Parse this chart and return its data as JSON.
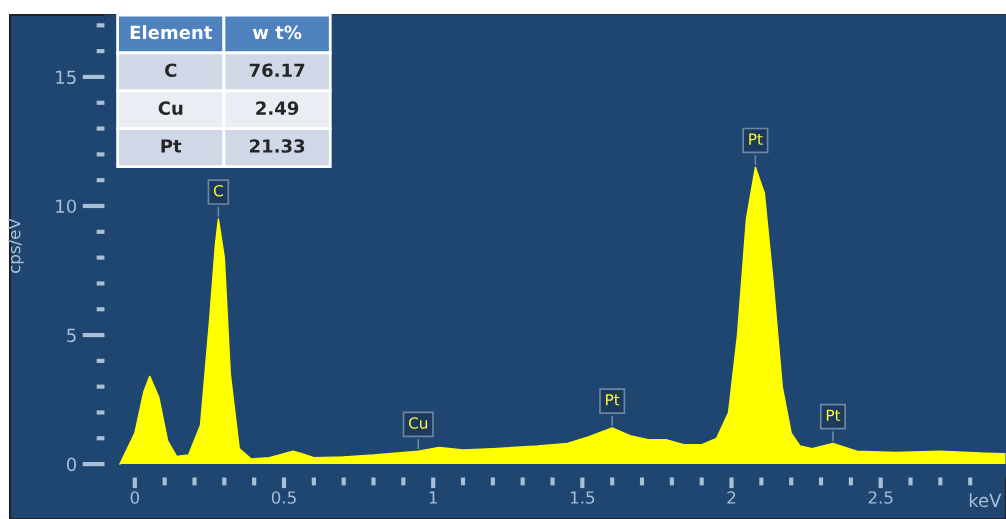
{
  "chart_data": {
    "type": "area",
    "xlabel": "keV",
    "ylabel": "cps/eV",
    "x": [
      -0.05,
      0.0,
      0.03,
      0.05,
      0.08,
      0.11,
      0.14,
      0.18,
      0.22,
      0.25,
      0.27,
      0.28,
      0.3,
      0.32,
      0.35,
      0.39,
      0.45,
      0.5,
      0.53,
      0.56,
      0.6,
      0.7,
      0.8,
      0.9,
      0.95,
      1.02,
      1.1,
      1.2,
      1.35,
      1.45,
      1.52,
      1.6,
      1.66,
      1.72,
      1.78,
      1.84,
      1.9,
      1.95,
      1.99,
      2.02,
      2.05,
      2.08,
      2.11,
      2.14,
      2.17,
      2.2,
      2.23,
      2.27,
      2.34,
      2.42,
      2.55,
      2.7,
      2.85,
      2.92
    ],
    "series": [
      {
        "color": "#ffff00",
        "values": [
          0.0,
          1.2,
          2.8,
          3.4,
          2.6,
          0.9,
          0.3,
          0.35,
          1.5,
          5.5,
          8.5,
          9.5,
          8.0,
          3.5,
          0.6,
          0.2,
          0.25,
          0.4,
          0.5,
          0.4,
          0.25,
          0.28,
          0.35,
          0.45,
          0.5,
          0.65,
          0.55,
          0.6,
          0.7,
          0.8,
          1.05,
          1.4,
          1.1,
          0.95,
          0.95,
          0.75,
          0.75,
          1.0,
          2.0,
          5.0,
          9.5,
          11.5,
          10.5,
          7.0,
          3.0,
          1.2,
          0.7,
          0.6,
          0.8,
          0.5,
          0.45,
          0.5,
          0.42,
          0.4
        ]
      }
    ],
    "xlim": [
      -0.1,
      2.92
    ],
    "ylim": [
      -0.5,
      17.4
    ],
    "xticks": [
      0,
      {
        "value": 0.1,
        "label": null
      },
      {
        "value": 0.2,
        "label": null
      },
      {
        "value": 0.3,
        "label": null
      },
      {
        "value": 0.4,
        "label": null
      },
      0.5,
      {
        "value": 0.6,
        "label": null
      },
      {
        "value": 0.7,
        "label": null
      },
      {
        "value": 0.8,
        "label": null
      },
      {
        "value": 0.9,
        "label": null
      },
      1,
      {
        "value": 1.1,
        "label": null
      },
      {
        "value": 1.2,
        "label": null
      },
      {
        "value": 1.3,
        "label": null
      },
      {
        "value": 1.4,
        "label": null
      },
      1.5,
      {
        "value": 1.6,
        "label": null
      },
      {
        "value": 1.7,
        "label": null
      },
      {
        "value": 1.8,
        "label": null
      },
      {
        "value": 1.9,
        "label": null
      },
      2,
      {
        "value": 2.1,
        "label": null
      },
      {
        "value": 2.2,
        "label": null
      },
      {
        "value": 2.3,
        "label": null
      },
      {
        "value": 2.4,
        "label": null
      },
      2.5,
      {
        "value": 2.6,
        "label": null
      },
      {
        "value": 2.7,
        "label": null
      },
      {
        "value": 2.8,
        "label": null
      }
    ],
    "yticks": [
      0,
      {
        "value": 1,
        "label": null
      },
      {
        "value": 2,
        "label": null
      },
      {
        "value": 3,
        "label": null
      },
      {
        "value": 4,
        "label": null
      },
      5,
      {
        "value": 6,
        "label": null
      },
      {
        "value": 7,
        "label": null
      },
      {
        "value": 8,
        "label": null
      },
      {
        "value": 9,
        "label": null
      },
      10,
      {
        "value": 11,
        "label": null
      },
      {
        "value": 12,
        "label": null
      },
      {
        "value": 13,
        "label": null
      },
      {
        "value": 14,
        "label": null
      },
      15,
      {
        "value": 16,
        "label": null
      },
      {
        "value": 17,
        "label": null
      }
    ],
    "grid": false,
    "legend": false,
    "annotations": [
      {
        "text": "C",
        "x": 0.28,
        "y": 9.5
      },
      {
        "text": "Cu",
        "x": 0.95,
        "y": 0.5
      },
      {
        "text": "Pt",
        "x": 1.6,
        "y": 1.4
      },
      {
        "text": "Pt",
        "x": 2.08,
        "y": 11.5
      },
      {
        "text": "Pt",
        "x": 2.34,
        "y": 0.8
      },
      "Element",
      "w t%",
      "C",
      "76.17",
      "Cu",
      "2.49",
      "Pt",
      "21.33"
    ]
  }
}
